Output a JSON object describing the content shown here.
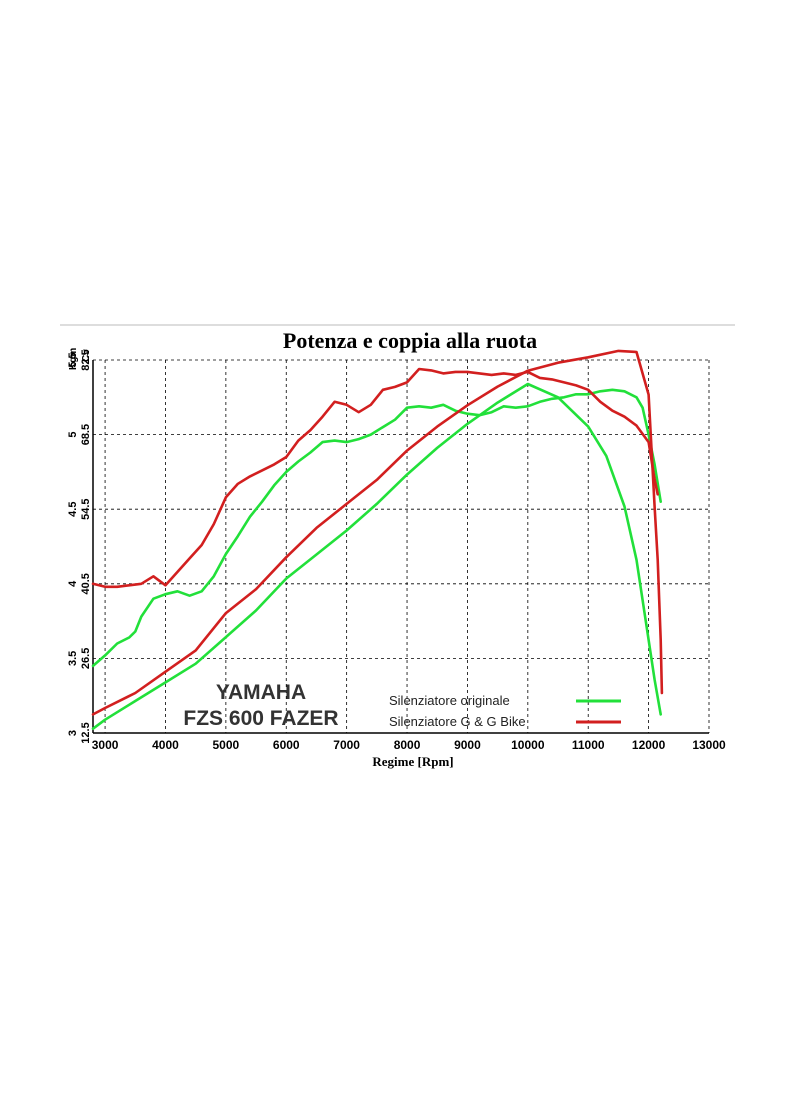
{
  "chart_data": {
    "type": "line",
    "title": "Potenza e coppia alla ruota",
    "xlabel": "Regime [Rpm]",
    "x_ticks": [
      "3000",
      "4000",
      "5000",
      "6000",
      "7000",
      "8000",
      "9000",
      "10000",
      "11000",
      "12000",
      "13000"
    ],
    "x_range": [
      2800,
      13000
    ],
    "y_left_torque": {
      "unit": "Kgm",
      "range": [
        3,
        5.5
      ],
      "ticks": [
        "3",
        "3.5",
        "4",
        "4.5",
        "5",
        "5.5"
      ]
    },
    "y_left_power": {
      "unit": "Cv",
      "range": [
        12.5,
        82.5
      ],
      "ticks": [
        "12.5",
        "26.5",
        "40.5",
        "54.5",
        "68.5",
        "82.5"
      ]
    },
    "brand": {
      "line1": "YAMAHA",
      "line2": "FZS 600 FAZER"
    },
    "series": [
      {
        "name": "Silenziatore originale",
        "color": "#22e03a",
        "torque": [
          [
            2800,
            3.45
          ],
          [
            3000,
            3.52
          ],
          [
            3200,
            3.6
          ],
          [
            3400,
            3.64
          ],
          [
            3500,
            3.68
          ],
          [
            3600,
            3.78
          ],
          [
            3800,
            3.9
          ],
          [
            4000,
            3.93
          ],
          [
            4200,
            3.95
          ],
          [
            4400,
            3.92
          ],
          [
            4600,
            3.95
          ],
          [
            4800,
            4.05
          ],
          [
            5000,
            4.2
          ],
          [
            5200,
            4.32
          ],
          [
            5400,
            4.45
          ],
          [
            5600,
            4.55
          ],
          [
            5800,
            4.66
          ],
          [
            6000,
            4.75
          ],
          [
            6200,
            4.82
          ],
          [
            6400,
            4.88
          ],
          [
            6600,
            4.95
          ],
          [
            6800,
            4.96
          ],
          [
            7000,
            4.95
          ],
          [
            7200,
            4.97
          ],
          [
            7400,
            5.0
          ],
          [
            7600,
            5.05
          ],
          [
            7800,
            5.1
          ],
          [
            8000,
            5.18
          ],
          [
            8200,
            5.19
          ],
          [
            8400,
            5.18
          ],
          [
            8600,
            5.2
          ],
          [
            8800,
            5.16
          ],
          [
            9000,
            5.14
          ],
          [
            9200,
            5.13
          ],
          [
            9400,
            5.15
          ],
          [
            9600,
            5.19
          ],
          [
            9800,
            5.18
          ],
          [
            10000,
            5.19
          ],
          [
            10200,
            5.22
          ],
          [
            10400,
            5.24
          ],
          [
            10600,
            5.25
          ],
          [
            10800,
            5.27
          ],
          [
            11000,
            5.27
          ],
          [
            11200,
            5.29
          ],
          [
            11400,
            5.3
          ],
          [
            11600,
            5.29
          ],
          [
            11800,
            5.25
          ],
          [
            11900,
            5.18
          ],
          [
            12000,
            5.0
          ],
          [
            12100,
            4.8
          ],
          [
            12200,
            4.55
          ]
        ],
        "power": [
          [
            2800,
            13.3
          ],
          [
            3000,
            15.0
          ],
          [
            3500,
            18.5
          ],
          [
            4000,
            22.0
          ],
          [
            4500,
            25.5
          ],
          [
            5000,
            30.5
          ],
          [
            5500,
            35.5
          ],
          [
            6000,
            41.5
          ],
          [
            6500,
            46.0
          ],
          [
            7000,
            50.5
          ],
          [
            7500,
            55.5
          ],
          [
            8000,
            61.0
          ],
          [
            8500,
            66.0
          ],
          [
            9000,
            70.5
          ],
          [
            9500,
            74.5
          ],
          [
            10000,
            78.0
          ],
          [
            10500,
            75.5
          ],
          [
            11000,
            70.0
          ],
          [
            11300,
            64.5
          ],
          [
            11600,
            55.0
          ],
          [
            11800,
            45.0
          ],
          [
            12000,
            30.0
          ],
          [
            12100,
            22.5
          ],
          [
            12200,
            16.0
          ]
        ]
      },
      {
        "name": "Silenziatore G & G Bike",
        "color": "#d21f1f",
        "torque": [
          [
            2800,
            4.0
          ],
          [
            3000,
            3.98
          ],
          [
            3200,
            3.98
          ],
          [
            3400,
            3.99
          ],
          [
            3600,
            4.0
          ],
          [
            3800,
            4.05
          ],
          [
            4000,
            3.99
          ],
          [
            4200,
            4.08
          ],
          [
            4400,
            4.17
          ],
          [
            4600,
            4.26
          ],
          [
            4800,
            4.4
          ],
          [
            5000,
            4.58
          ],
          [
            5200,
            4.67
          ],
          [
            5400,
            4.72
          ],
          [
            5600,
            4.76
          ],
          [
            5800,
            4.8
          ],
          [
            6000,
            4.85
          ],
          [
            6200,
            4.96
          ],
          [
            6400,
            5.03
          ],
          [
            6600,
            5.12
          ],
          [
            6800,
            5.22
          ],
          [
            7000,
            5.2
          ],
          [
            7200,
            5.15
          ],
          [
            7400,
            5.2
          ],
          [
            7600,
            5.3
          ],
          [
            7800,
            5.32
          ],
          [
            8000,
            5.35
          ],
          [
            8200,
            5.44
          ],
          [
            8400,
            5.43
          ],
          [
            8600,
            5.41
          ],
          [
            8800,
            5.42
          ],
          [
            9000,
            5.42
          ],
          [
            9200,
            5.41
          ],
          [
            9400,
            5.4
          ],
          [
            9600,
            5.41
          ],
          [
            9800,
            5.4
          ],
          [
            10000,
            5.42
          ],
          [
            10200,
            5.38
          ],
          [
            10400,
            5.37
          ],
          [
            10600,
            5.35
          ],
          [
            10800,
            5.33
          ],
          [
            11000,
            5.3
          ],
          [
            11200,
            5.22
          ],
          [
            11400,
            5.16
          ],
          [
            11600,
            5.12
          ],
          [
            11800,
            5.06
          ],
          [
            12000,
            4.95
          ],
          [
            12100,
            4.7
          ],
          [
            12150,
            4.6
          ]
        ],
        "power": [
          [
            2800,
            16.0
          ],
          [
            3000,
            17.2
          ],
          [
            3500,
            20.0
          ],
          [
            4000,
            24.0
          ],
          [
            4500,
            28.0
          ],
          [
            5000,
            35.0
          ],
          [
            5500,
            39.5
          ],
          [
            6000,
            45.5
          ],
          [
            6500,
            51.0
          ],
          [
            7000,
            55.5
          ],
          [
            7500,
            60.0
          ],
          [
            8000,
            65.5
          ],
          [
            8500,
            70.0
          ],
          [
            9000,
            74.0
          ],
          [
            9500,
            77.5
          ],
          [
            10000,
            80.5
          ],
          [
            10500,
            82.0
          ],
          [
            11000,
            83.0
          ],
          [
            11500,
            84.2
          ],
          [
            11800,
            84.0
          ],
          [
            12000,
            76.0
          ],
          [
            12100,
            55.0
          ],
          [
            12150,
            45.0
          ],
          [
            12200,
            30.0
          ],
          [
            12220,
            20.0
          ]
        ]
      }
    ]
  }
}
